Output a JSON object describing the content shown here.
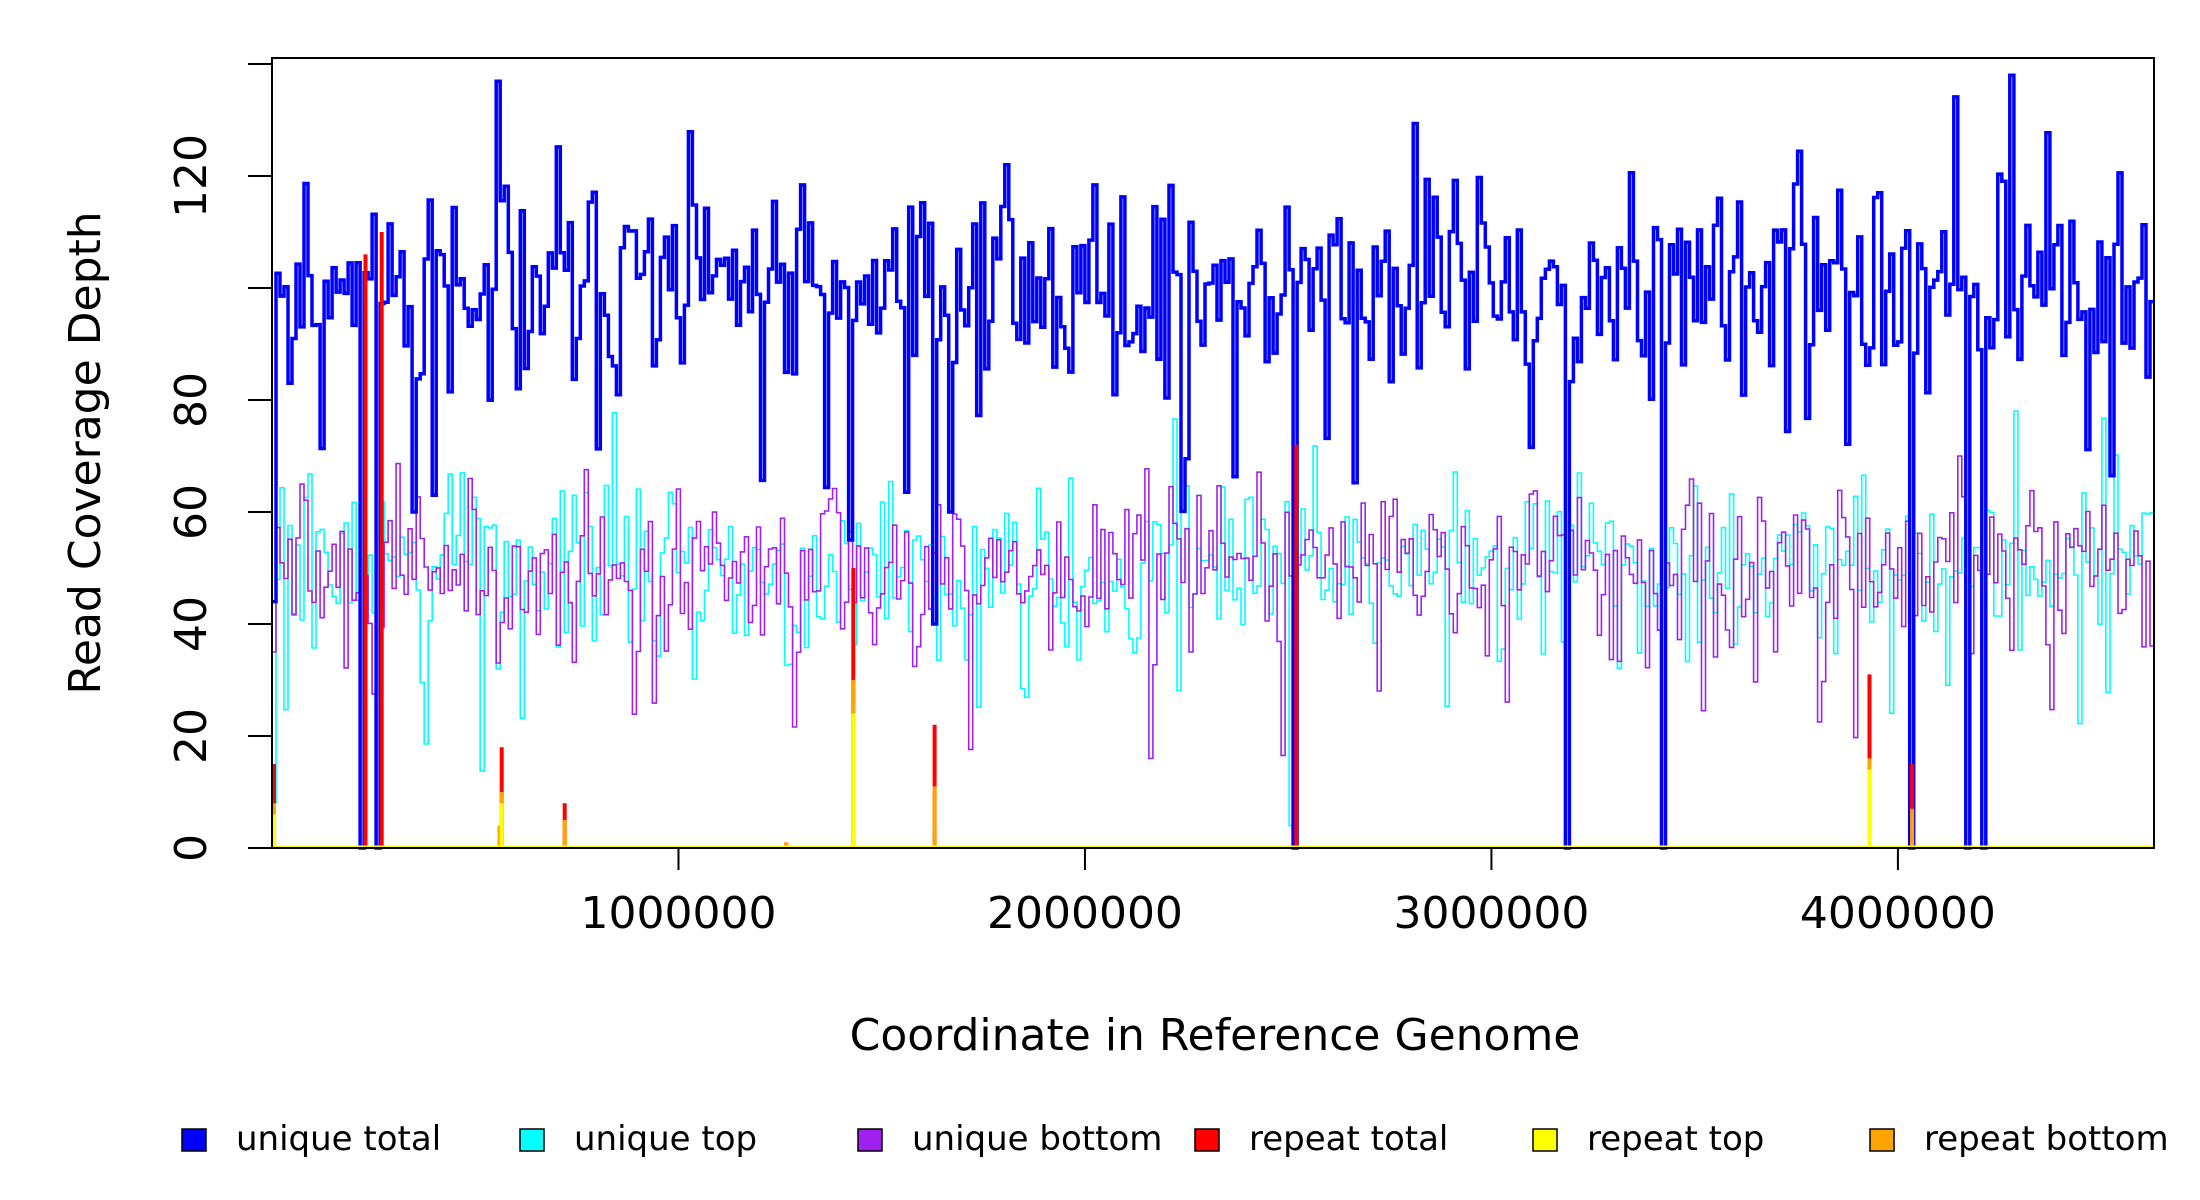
{
  "chart_data": {
    "type": "line",
    "title": "",
    "xlabel": "Coordinate in Reference Genome",
    "ylabel": "Read Coverage Depth",
    "xlim": [
      0,
      4630000
    ],
    "ylim": [
      0,
      140
    ],
    "grid": false,
    "legend_position": "bottom",
    "x_ticks": [
      {
        "value": 1000000,
        "label": "1000000"
      },
      {
        "value": 2000000,
        "label": "2000000"
      },
      {
        "value": 3000000,
        "label": "3000000"
      },
      {
        "value": 4000000,
        "label": "4000000"
      }
    ],
    "y_ticks": [
      {
        "value": 0,
        "label": "0"
      },
      {
        "value": 20,
        "label": "20"
      },
      {
        "value": 40,
        "label": "40"
      },
      {
        "value": 60,
        "label": "60"
      },
      {
        "value": 80,
        "label": "80"
      },
      {
        "value": 100,
        "label": ""
      },
      {
        "value": 120,
        "label": "120"
      },
      {
        "value": 140,
        "label": ""
      }
    ],
    "series": [
      {
        "name": "unique total",
        "color": "#0000ff",
        "stroke_weight": "heavy",
        "mean": 100,
        "noise": 11,
        "floor": 60,
        "ceil": 138,
        "seed": 11,
        "dips": [
          [
            0,
            44
          ],
          [
            220000,
            0
          ],
          [
            265000,
            0
          ],
          [
            2520000,
            0
          ],
          [
            3190000,
            0
          ],
          [
            3420000,
            0
          ],
          [
            4030000,
            0
          ],
          [
            4170000,
            0
          ],
          [
            4210000,
            0
          ],
          [
            1630000,
            40
          ],
          [
            1420000,
            55
          ]
        ]
      },
      {
        "name": "unique top",
        "color": "#00ffff",
        "stroke_weight": "thin",
        "mean": 50,
        "noise": 9,
        "floor": 3,
        "ceil": 78,
        "seed": 29,
        "dips": [
          [
            0,
            8
          ],
          [
            220000,
            0
          ],
          [
            265000,
            0
          ],
          [
            2510000,
            4
          ],
          [
            3190000,
            0
          ],
          [
            3420000,
            0
          ],
          [
            4030000,
            0
          ],
          [
            4170000,
            0
          ],
          [
            4210000,
            0
          ]
        ]
      },
      {
        "name": "unique bottom",
        "color": "#a020f0",
        "stroke_weight": "thin",
        "mean": 50,
        "noise": 8,
        "floor": 16,
        "ceil": 70,
        "seed": 47,
        "dips": [
          [
            0,
            35
          ],
          [
            220000,
            0
          ],
          [
            265000,
            0
          ],
          [
            2520000,
            0
          ],
          [
            3190000,
            0
          ],
          [
            3420000,
            0
          ],
          [
            4030000,
            0
          ],
          [
            4170000,
            0
          ],
          [
            4210000,
            0
          ]
        ]
      },
      {
        "name": "repeat total",
        "color": "#ff0000",
        "stroke_weight": "heavy",
        "spikes": [
          [
            5000,
            15
          ],
          [
            565000,
            18
          ],
          [
            720000,
            8
          ],
          [
            1265000,
            1
          ],
          [
            1430000,
            50
          ],
          [
            1630000,
            22
          ],
          [
            2520000,
            72
          ],
          [
            3930000,
            31
          ],
          [
            4035000,
            15
          ],
          [
            230000,
            106
          ],
          [
            270000,
            110
          ]
        ]
      },
      {
        "name": "repeat top",
        "color": "#ffff00",
        "stroke_weight": "heavy",
        "spikes": [
          [
            5000,
            6
          ],
          [
            565000,
            8
          ],
          [
            1430000,
            24
          ],
          [
            3930000,
            14
          ]
        ]
      },
      {
        "name": "repeat bottom",
        "color": "#ffa500",
        "stroke_weight": "heavy",
        "spikes": [
          [
            5000,
            8
          ],
          [
            560000,
            4
          ],
          [
            565000,
            10
          ],
          [
            720000,
            5
          ],
          [
            1265000,
            1
          ],
          [
            1430000,
            30
          ],
          [
            1630000,
            11
          ],
          [
            3930000,
            16
          ],
          [
            4035000,
            7
          ]
        ]
      }
    ]
  }
}
